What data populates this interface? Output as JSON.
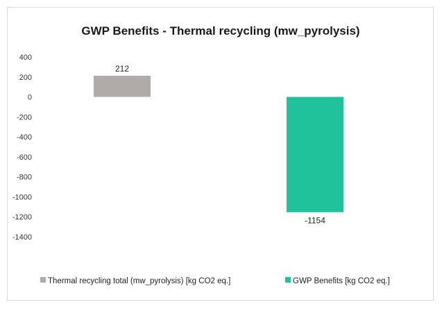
{
  "chart_data": {
    "type": "bar",
    "title": "GWP Benefits - Thermal recycling (mw_pyrolysis)",
    "xlabel": "",
    "ylabel": "",
    "ylim": [
      -1400,
      400
    ],
    "yticks": [
      400,
      200,
      0,
      -200,
      -400,
      -600,
      -800,
      -1000,
      -1200,
      -1400
    ],
    "grid": false,
    "legend": "bottom",
    "series": [
      {
        "name": "Thermal recycling total (mw_pyrolysis) [kg CO2 eq.]",
        "value": 212,
        "label": "212",
        "color": "#b0aba8"
      },
      {
        "name": "GWP Benefits [kg CO2 eq.]",
        "value": -1154,
        "label": "-1154",
        "color": "#1fc29a"
      }
    ]
  }
}
